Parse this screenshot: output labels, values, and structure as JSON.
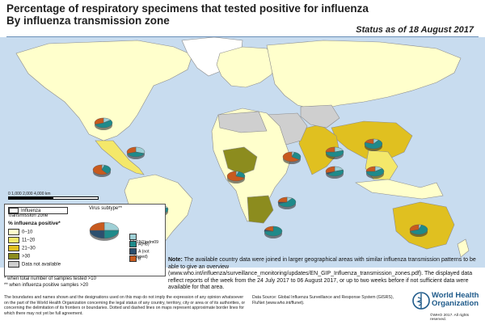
{
  "title_line1": "Percentage of respiratory specimens that tested positive for influenza",
  "title_line2": "By influenza transmission zone",
  "status": "Status as of 18 August 2017",
  "scale_labels": "0    1,000    2,000        4,000 km",
  "legend": {
    "zone_label": "Influenza transmission zone",
    "pct_title": "% influenza positive*",
    "pct_classes": [
      {
        "label": "0–10",
        "color": "#ffffcc"
      },
      {
        "label": "11–20",
        "color": "#f4e86a"
      },
      {
        "label": "21–30",
        "color": "#e0c020"
      },
      {
        "label": ">30",
        "color": "#8c8c1e"
      },
      {
        "label": "Data not available",
        "color": "#cfcfcf"
      }
    ],
    "virus_title": "Virus subtype**",
    "virus_classes": [
      {
        "label": "A(H1N1)pdm09",
        "color": "#9fd0d6"
      },
      {
        "label": "A(H3)",
        "color": "#1f8a8a"
      },
      {
        "label": "A (not subtyped)",
        "color": "#2c4f6e"
      },
      {
        "label": "B",
        "color": "#c85a1e"
      }
    ],
    "footnote1": "*   when total number of samples tested >10",
    "footnote2": "**  when influenza positive samples >20"
  },
  "note_label": "Note:",
  "note_text": "The available country data were joined in larger geographical areas with similar influenza transmission patterns to be able to give an overview (www.who.int/influenza/surveillance_monitoring/updates/EN_GIP_Influenza_transmission_zones.pdf). The displayed data reflect reports of the week from the 24 July 2017 to 06 August 2017, or up to two weeks before if not sufficient data were available for that area.",
  "disclaimer": "The boundaries and names shown and the designations used on this map do not imply the expression of any opinion whatsoever on the part of the World Health Organization concerning the legal status of any country, territory, city or area or of its authorities, or concerning the delimitation of its frontiers or boundaries. Dotted and dashed lines on maps represent approximate border lines for which there may not yet be full agreement.",
  "source": "Data Source: Global Influenza Surveillance and Response System (GISRS), FluNet (www.who.int/flunet).",
  "who_name_1": "World Health",
  "who_name_2": "Organization",
  "copyright": "©WHO 2017. All rights reserved.",
  "pies": [
    {
      "region": "North America",
      "values": [
        0.15,
        0.55,
        0.0,
        0.3
      ]
    },
    {
      "region": "Central America",
      "values": [
        0.05,
        0.35,
        0.0,
        0.6
      ]
    },
    {
      "region": "Caribbean",
      "values": [
        0.3,
        0.4,
        0.0,
        0.3
      ]
    },
    {
      "region": "Tropical South America",
      "values": [
        0.2,
        0.35,
        0.05,
        0.4
      ]
    },
    {
      "region": "Temperate South America",
      "values": [
        0.45,
        0.4,
        0.05,
        0.1
      ]
    },
    {
      "region": "Western Africa",
      "values": [
        0.05,
        0.25,
        0.0,
        0.7
      ]
    },
    {
      "region": "Eastern Africa",
      "values": [
        0.1,
        0.6,
        0.05,
        0.25
      ]
    },
    {
      "region": "Southern Africa",
      "values": [
        0.0,
        0.75,
        0.05,
        0.2
      ]
    },
    {
      "region": "Western Asia",
      "values": [
        0.05,
        0.3,
        0.0,
        0.65
      ]
    },
    {
      "region": "Southern Asia",
      "values": [
        0.2,
        0.55,
        0.0,
        0.25
      ]
    },
    {
      "region": "Southern Asia (East)",
      "values": [
        0.2,
        0.45,
        0.05,
        0.3
      ]
    },
    {
      "region": "Eastern Asia",
      "values": [
        0.1,
        0.7,
        0.0,
        0.2
      ]
    },
    {
      "region": "South-East Asia",
      "values": [
        0.15,
        0.6,
        0.0,
        0.25
      ]
    },
    {
      "region": "Oceania",
      "values": [
        0.05,
        0.65,
        0.0,
        0.3
      ]
    }
  ]
}
